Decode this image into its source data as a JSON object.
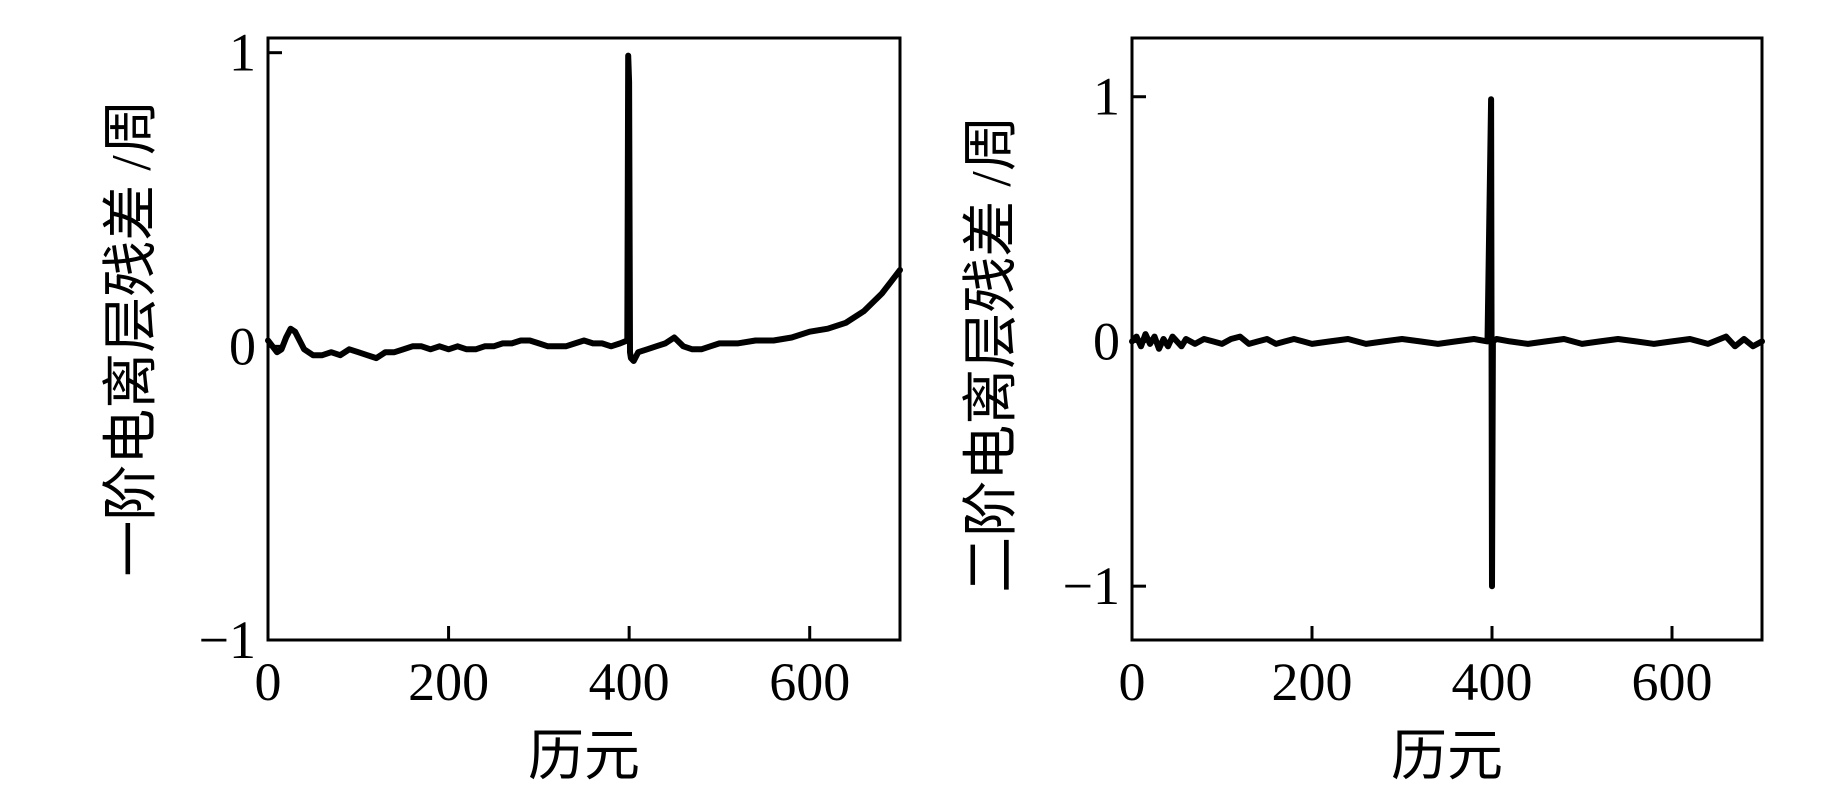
{
  "colors": {
    "line": "#000000",
    "frame": "#000000",
    "background": "#ffffff"
  },
  "chart_data": [
    {
      "type": "line",
      "xlabel": "历元",
      "ylabel": "一阶电离层残差 /周",
      "xlim": [
        0,
        700
      ],
      "ylim": [
        -1,
        1.05
      ],
      "xticks": [
        0,
        200,
        400,
        600
      ],
      "xtick_labels": [
        "0",
        "200",
        "400",
        "600"
      ],
      "yticks": [
        -1,
        0,
        1
      ],
      "ytick_labels": [
        "−1",
        "0",
        "1"
      ],
      "grid": false,
      "series": [
        {
          "x": [
            0,
            5,
            10,
            15,
            20,
            25,
            30,
            35,
            40,
            50,
            60,
            70,
            80,
            90,
            100,
            110,
            120,
            130,
            140,
            150,
            160,
            170,
            180,
            190,
            200,
            210,
            220,
            230,
            240,
            250,
            260,
            270,
            280,
            290,
            300,
            310,
            320,
            330,
            340,
            350,
            360,
            370,
            380,
            390,
            398,
            399,
            400,
            401,
            402,
            405,
            410,
            420,
            430,
            440,
            450,
            460,
            470,
            480,
            490,
            500,
            520,
            540,
            560,
            580,
            600,
            620,
            640,
            660,
            680,
            700
          ],
          "y": [
            0.02,
            0.0,
            -0.02,
            -0.01,
            0.03,
            0.06,
            0.05,
            0.02,
            -0.01,
            -0.03,
            -0.03,
            -0.02,
            -0.03,
            -0.01,
            -0.02,
            -0.03,
            -0.04,
            -0.02,
            -0.02,
            -0.01,
            0.0,
            0.0,
            -0.01,
            0.0,
            -0.01,
            0.0,
            -0.01,
            -0.01,
            0.0,
            0.0,
            0.01,
            0.01,
            0.02,
            0.02,
            0.01,
            0.0,
            0.0,
            0.0,
            0.01,
            0.02,
            0.01,
            0.01,
            0.0,
            0.01,
            0.02,
            0.99,
            0.9,
            -0.02,
            -0.04,
            -0.05,
            -0.02,
            -0.01,
            0.0,
            0.01,
            0.03,
            0.0,
            -0.01,
            -0.01,
            0.0,
            0.01,
            0.01,
            0.02,
            0.02,
            0.03,
            0.05,
            0.06,
            0.08,
            0.12,
            0.18,
            0.26
          ]
        }
      ]
    },
    {
      "type": "line",
      "xlabel": "历元",
      "ylabel": "二阶电离层残差 /周",
      "xlim": [
        0,
        700
      ],
      "ylim": [
        -1.22,
        1.24
      ],
      "xticks": [
        0,
        200,
        400,
        600
      ],
      "xtick_labels": [
        "0",
        "200",
        "400",
        "600"
      ],
      "yticks": [
        -1,
        0,
        1
      ],
      "ytick_labels": [
        "−1",
        "0",
        "1"
      ],
      "grid": false,
      "series": [
        {
          "x": [
            0,
            5,
            10,
            15,
            20,
            25,
            30,
            35,
            40,
            45,
            50,
            55,
            60,
            70,
            80,
            90,
            100,
            110,
            120,
            130,
            140,
            150,
            160,
            170,
            180,
            190,
            200,
            220,
            240,
            260,
            280,
            300,
            320,
            340,
            360,
            380,
            395,
            399,
            400,
            401,
            405,
            420,
            440,
            460,
            480,
            500,
            520,
            540,
            560,
            580,
            600,
            620,
            640,
            660,
            670,
            680,
            690,
            700
          ],
          "y": [
            0.0,
            0.02,
            -0.02,
            0.03,
            -0.01,
            0.02,
            -0.03,
            0.01,
            -0.02,
            0.02,
            0.0,
            -0.02,
            0.01,
            -0.01,
            0.01,
            0.0,
            -0.01,
            0.01,
            0.02,
            -0.01,
            0.0,
            0.01,
            -0.01,
            0.0,
            0.01,
            0.0,
            -0.01,
            0.0,
            0.01,
            -0.01,
            0.0,
            0.01,
            0.0,
            -0.01,
            0.0,
            0.01,
            0.0,
            0.99,
            -1.0,
            0.0,
            0.01,
            0.0,
            -0.01,
            0.0,
            0.01,
            -0.01,
            0.0,
            0.01,
            0.0,
            -0.01,
            0.0,
            0.01,
            -0.01,
            0.02,
            -0.02,
            0.01,
            -0.02,
            0.0
          ]
        }
      ]
    }
  ]
}
